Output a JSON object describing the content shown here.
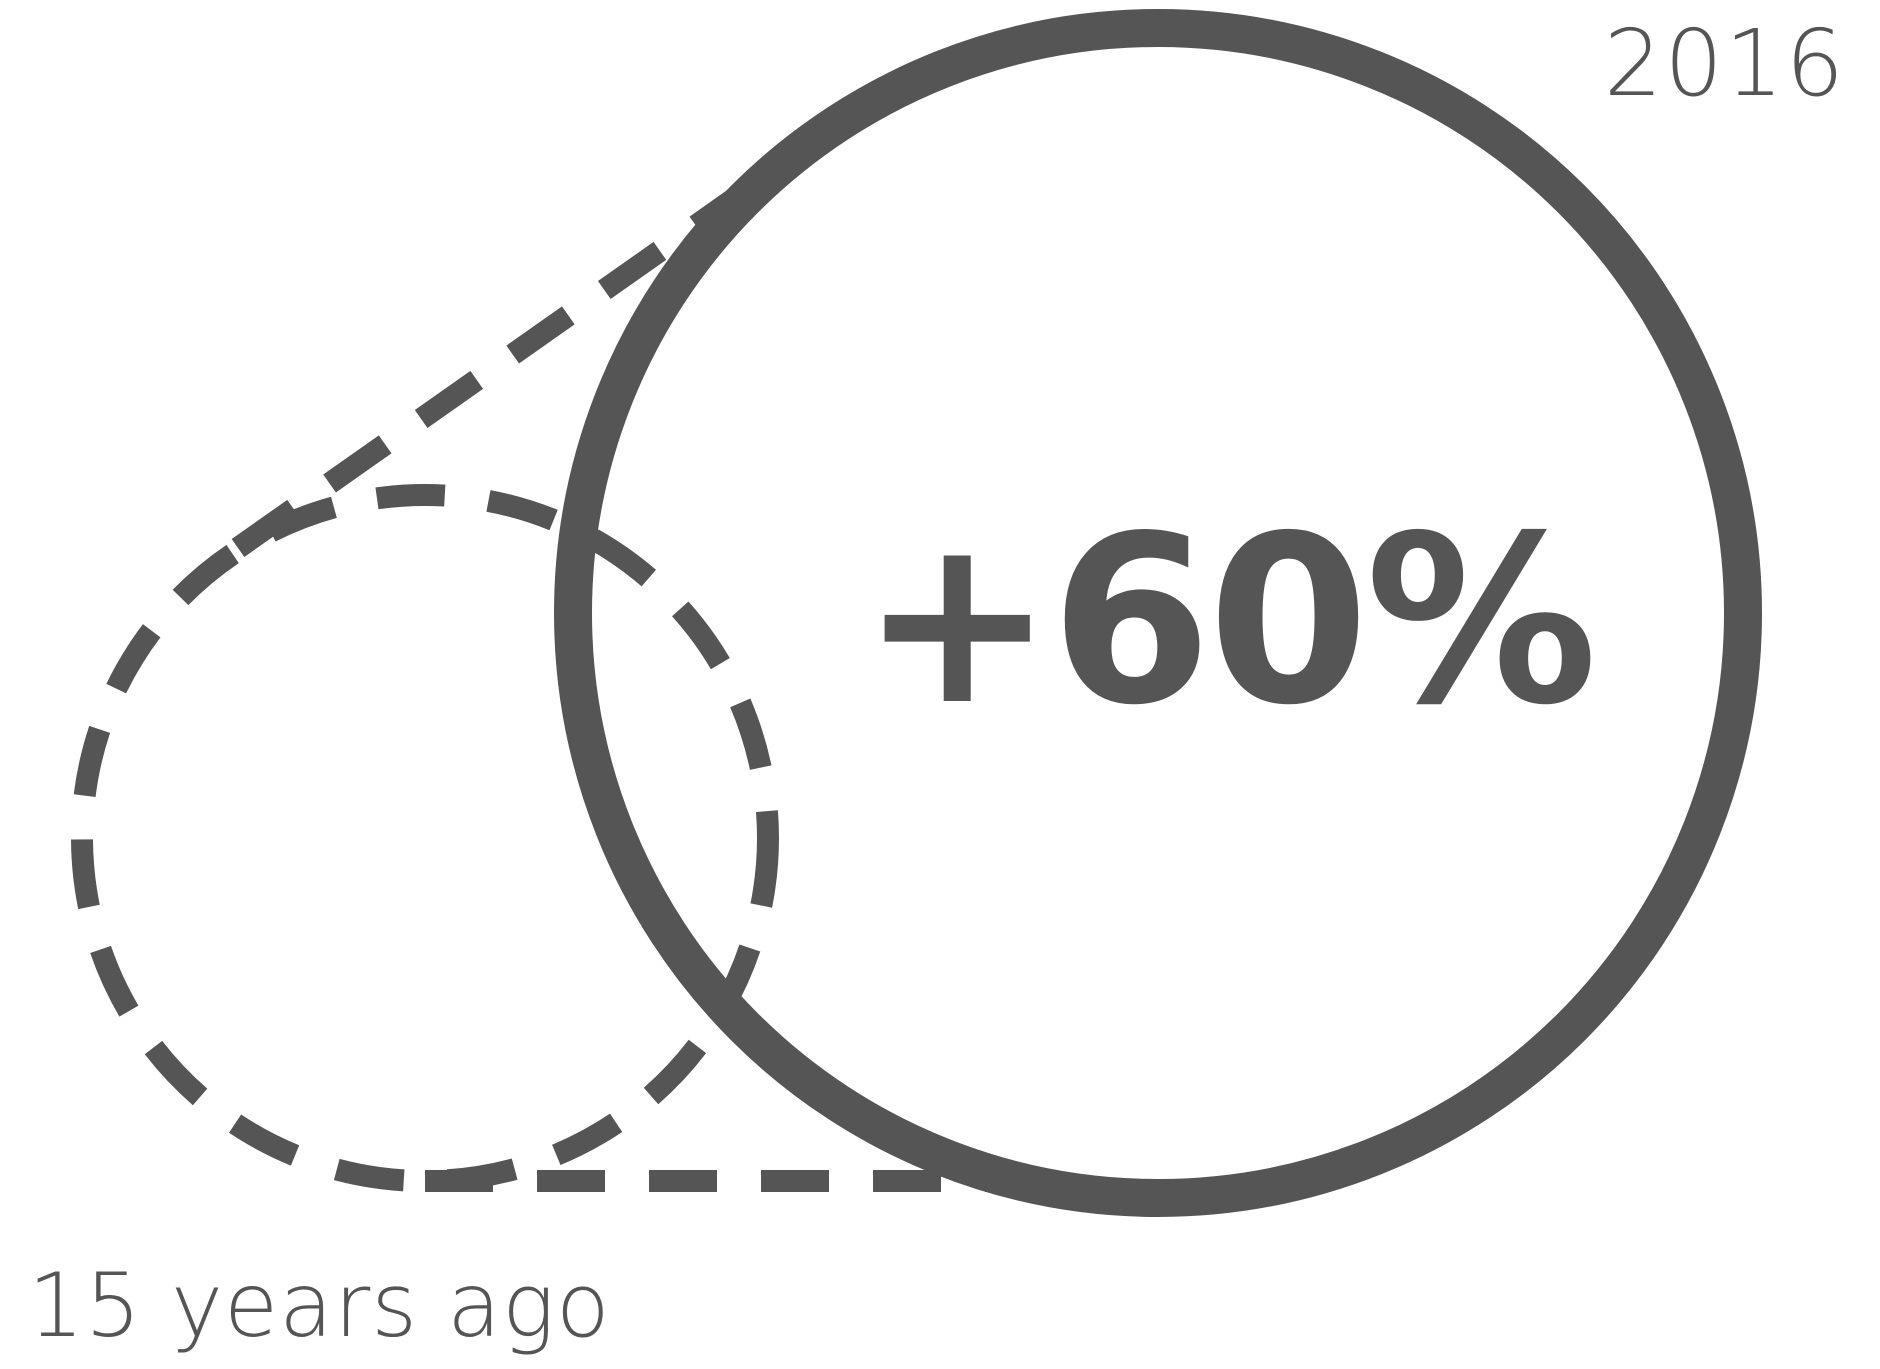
{
  "diagram": {
    "current_label": "2016",
    "past_label": "15 years ago",
    "change_value": "+60%",
    "colors": {
      "stroke": "#555556",
      "text": "#555556",
      "background": "#ffffff"
    }
  }
}
